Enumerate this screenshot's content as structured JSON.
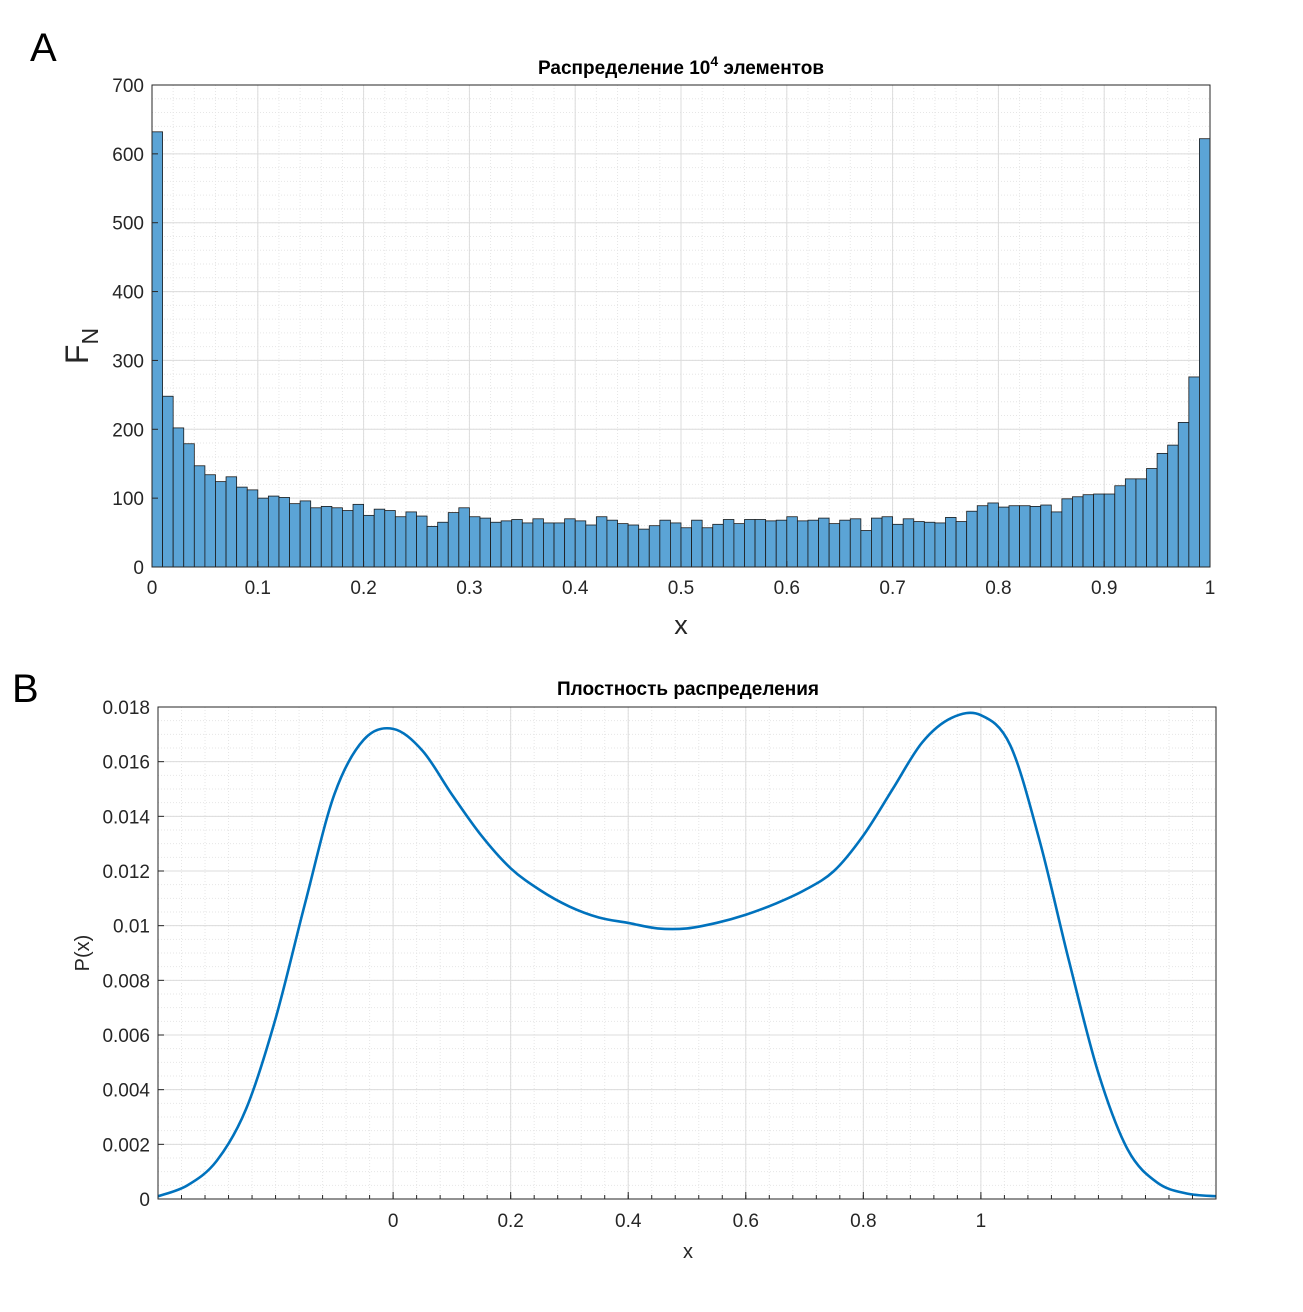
{
  "panels": {
    "a_label": "A",
    "b_label": "B"
  },
  "chart_data": [
    {
      "type": "bar",
      "title_main": "Распределение 10",
      "title_sup": "4",
      "title_rest": " элементов",
      "xlabel": "x",
      "ylabel_main": "F",
      "ylabel_sub": "N",
      "xlim": [
        0,
        1
      ],
      "ylim": [
        0,
        700
      ],
      "xticks": [
        0,
        0.1,
        0.2,
        0.3,
        0.4,
        0.5,
        0.6,
        0.7,
        0.8,
        0.9,
        1
      ],
      "xtick_labels": [
        "0",
        "0.1",
        "0.2",
        "0.3",
        "0.4",
        "0.5",
        "0.6",
        "0.7",
        "0.8",
        "0.9",
        "1"
      ],
      "yticks": [
        0,
        100,
        200,
        300,
        400,
        500,
        600,
        700
      ],
      "ytick_labels": [
        "0",
        "100",
        "200",
        "300",
        "400",
        "500",
        "600",
        "700"
      ],
      "grid": true,
      "bin_width": 0.01,
      "values": [
        632,
        248,
        202,
        179,
        147,
        134,
        124,
        131,
        116,
        112,
        100,
        103,
        101,
        92,
        96,
        86,
        88,
        86,
        82,
        91,
        75,
        84,
        82,
        73,
        80,
        74,
        59,
        65,
        79,
        86,
        73,
        71,
        65,
        67,
        69,
        64,
        70,
        64,
        64,
        70,
        67,
        61,
        73,
        68,
        63,
        61,
        55,
        60,
        68,
        64,
        57,
        68,
        57,
        62,
        69,
        63,
        69,
        69,
        67,
        68,
        73,
        67,
        68,
        71,
        63,
        68,
        70,
        53,
        71,
        73,
        62,
        70,
        66,
        65,
        64,
        72,
        66,
        81,
        89,
        93,
        87,
        89,
        89,
        88,
        90,
        80,
        99,
        102,
        105,
        106,
        106,
        118,
        128,
        128,
        143,
        165,
        177,
        210,
        276,
        622
      ],
      "color": "#5ba4d6"
    },
    {
      "type": "line",
      "title": "Плостность распределения",
      "xlabel": "x",
      "ylabel": "P(x)",
      "xlim": [
        -0.4,
        1.4
      ],
      "ylim": [
        0,
        0.018
      ],
      "xticks": [
        0,
        0.2,
        0.4,
        0.6,
        0.8,
        1
      ],
      "xtick_labels": [
        "0",
        "0.2",
        "0.4",
        "0.6",
        "0.8",
        "1"
      ],
      "yticks": [
        0,
        0.002,
        0.004,
        0.006,
        0.008,
        0.01,
        0.012,
        0.014,
        0.016,
        0.018
      ],
      "ytick_labels": [
        "0",
        "0.002",
        "0.004",
        "0.006",
        "0.008",
        "0.01",
        "0.012",
        "0.014",
        "0.016",
        "0.018"
      ],
      "grid": true,
      "x": [
        -0.4,
        -0.35,
        -0.3,
        -0.25,
        -0.2,
        -0.15,
        -0.1,
        -0.05,
        0,
        0.05,
        0.1,
        0.15,
        0.2,
        0.25,
        0.3,
        0.35,
        0.4,
        0.45,
        0.5,
        0.55,
        0.6,
        0.65,
        0.7,
        0.75,
        0.8,
        0.85,
        0.9,
        0.95,
        1.0,
        1.05,
        1.1,
        1.15,
        1.2,
        1.25,
        1.3,
        1.35,
        1.4
      ],
      "y": [
        0.0001,
        0.0005,
        0.0014,
        0.0033,
        0.0066,
        0.0108,
        0.0148,
        0.0168,
        0.0172,
        0.0164,
        0.0148,
        0.0133,
        0.0121,
        0.0113,
        0.0107,
        0.0103,
        0.0101,
        0.0099,
        0.0099,
        0.0101,
        0.0104,
        0.0108,
        0.0113,
        0.012,
        0.0133,
        0.015,
        0.0167,
        0.0176,
        0.0177,
        0.0166,
        0.0131,
        0.0087,
        0.0046,
        0.0018,
        0.0006,
        0.0002,
        0.0001
      ],
      "color": "#0072bd"
    }
  ]
}
